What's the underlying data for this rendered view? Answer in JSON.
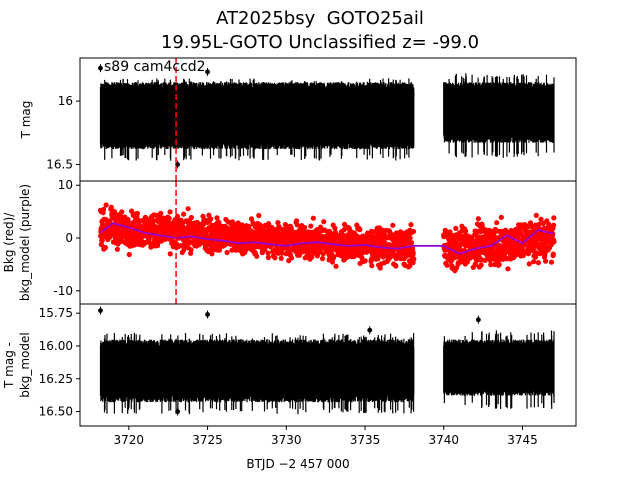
{
  "header": {
    "title_line1": "AT2025bsy  GOTO25ail",
    "title_line2": "19.95L-GOTO Unclassified z= -99.0"
  },
  "colors": {
    "flux": "#000000",
    "bkg": "#ff0000",
    "bkg_model": "#9400d3",
    "marker": "#ff0000"
  },
  "chart_data": [
    {
      "type": "scatter",
      "annotation": "s89 cam4ccd2",
      "ylabel": "T mag",
      "yticks": [
        16.0,
        16.5
      ],
      "ylim": [
        16.63,
        15.66
      ],
      "xlim": [
        3716.9,
        3748.4
      ],
      "marker_line_x": 3723.0,
      "segments": [
        {
          "x_start": 3718.2,
          "x_end": 3738.1,
          "band": [
            15.88,
            16.35
          ],
          "spread": [
            15.82,
            16.47
          ]
        },
        {
          "x_start": 3740.0,
          "x_end": 3747.0,
          "band": [
            15.88,
            16.3
          ],
          "spread": [
            15.78,
            16.45
          ]
        }
      ],
      "outliers": [
        {
          "x": 3718.2,
          "y": 15.74
        },
        {
          "x": 3725.0,
          "y": 15.77
        },
        {
          "x": 3723.1,
          "y": 16.5
        },
        {
          "x": 3742.2,
          "y": 15.9
        },
        {
          "x": 3738.0,
          "y": 15.95
        }
      ]
    },
    {
      "type": "scatter",
      "ylabel": "Bkg (red)/\nbkg_model (purple)",
      "yticks": [
        -10,
        0,
        10
      ],
      "ylim": [
        -12.5,
        10.8
      ],
      "xlim": [
        3716.9,
        3748.4
      ],
      "marker_line_x": 3723.0,
      "bkg_segments": [
        {
          "x_start": 3718.2,
          "x_end": 3738.1,
          "center_start": 2.0,
          "center_end": -2.0,
          "spread": 6
        },
        {
          "x_start": 3740.0,
          "x_end": 3747.0,
          "center_start": -2.0,
          "center_end": 0.0,
          "spread": 7
        }
      ],
      "bkg_model": {
        "x": [
          3718.2,
          3719.0,
          3720.0,
          3721.0,
          3722.0,
          3723.0,
          3724.0,
          3725.0,
          3726.0,
          3727.0,
          3728.0,
          3729.0,
          3730.0,
          3731.0,
          3732.0,
          3733.0,
          3734.0,
          3735.0,
          3736.0,
          3737.0,
          3738.1,
          3740.0,
          3741.0,
          3742.0,
          3743.0,
          3744.0,
          3745.0,
          3746.0,
          3747.0
        ],
        "y": [
          1.0,
          2.8,
          2.0,
          1.0,
          0.5,
          0.0,
          0.3,
          -0.2,
          -0.5,
          -1.0,
          -0.8,
          -1.2,
          -1.5,
          -1.0,
          -0.8,
          -1.2,
          -1.5,
          -1.3,
          -1.8,
          -2.0,
          -1.5,
          -1.5,
          -3.0,
          -2.0,
          -1.5,
          0.5,
          -1.0,
          1.5,
          0.8
        ]
      }
    },
    {
      "type": "scatter",
      "ylabel": "T mag -\nbkg_model",
      "xlabel": "BTJD −2 457 000",
      "yticks": [
        15.75,
        16.0,
        16.25,
        16.5
      ],
      "xticks": [
        3720,
        3725,
        3730,
        3735,
        3740,
        3745
      ],
      "ylim": [
        16.61,
        15.68
      ],
      "xlim": [
        3716.9,
        3748.4
      ],
      "segments": [
        {
          "x_start": 3718.2,
          "x_end": 3738.1,
          "band": [
            15.98,
            16.4
          ],
          "spread": [
            15.9,
            16.52
          ]
        },
        {
          "x_start": 3740.0,
          "x_end": 3747.0,
          "band": [
            15.98,
            16.35
          ],
          "spread": [
            15.88,
            16.48
          ]
        }
      ],
      "outliers": [
        {
          "x": 3718.2,
          "y": 15.73
        },
        {
          "x": 3725.0,
          "y": 15.76
        },
        {
          "x": 3742.2,
          "y": 15.8
        },
        {
          "x": 3723.1,
          "y": 16.5
        },
        {
          "x": 3735.3,
          "y": 15.88
        }
      ]
    }
  ]
}
